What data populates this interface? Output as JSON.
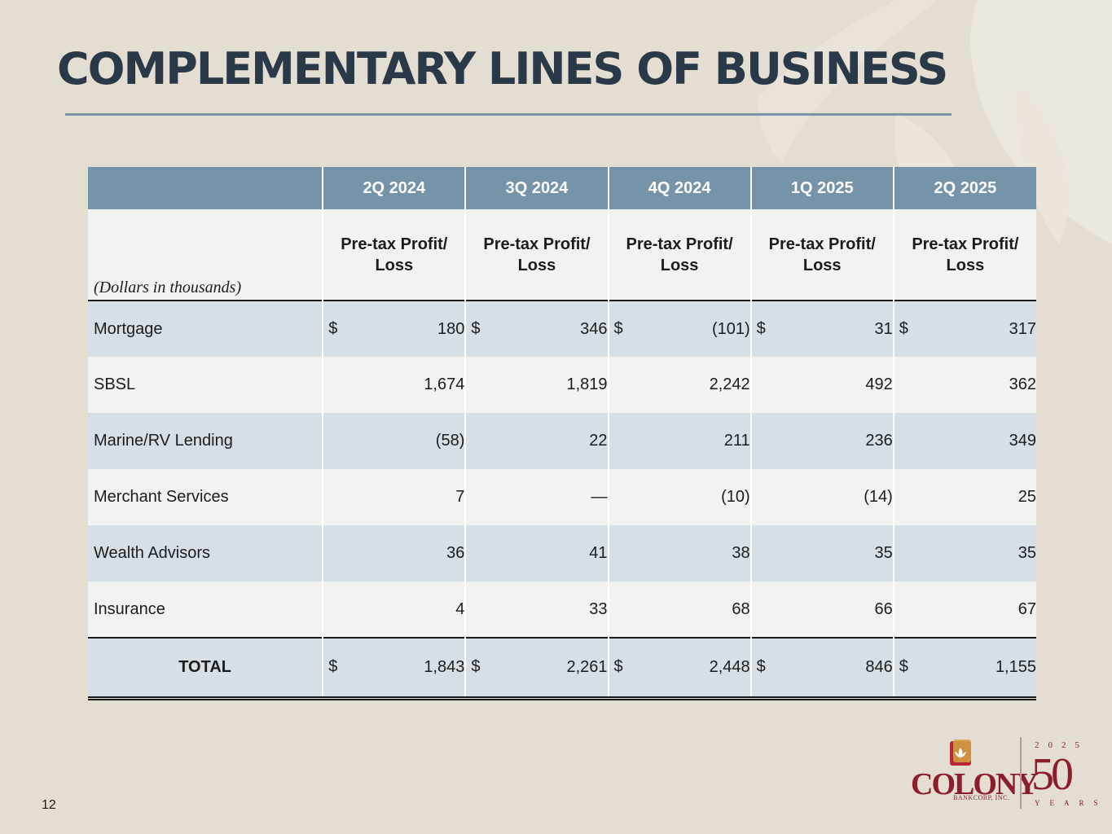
{
  "title": "COMPLEMENTARY LINES OF BUSINESS",
  "colors": {
    "title": "#2a3948",
    "header_bg": "#7593a9",
    "row_shade": "#d7dfe6",
    "row_light": "#f2f2f1",
    "brand": "#8c1d2b",
    "background": "#e4ddd2"
  },
  "table": {
    "units_note": "(Dollars in thousands)",
    "quarters": [
      "2Q 2024",
      "3Q 2024",
      "4Q 2024",
      "1Q 2025",
      "2Q 2025"
    ],
    "metric_line1": "Pre-tax Profit/",
    "metric_line2": "Loss",
    "currency_symbol": "$",
    "rows": [
      {
        "label": "Mortgage",
        "values": [
          "180",
          "346",
          "(101)",
          "31",
          "317"
        ]
      },
      {
        "label": "SBSL",
        "values": [
          "1,674",
          "1,819",
          "2,242",
          "492",
          "362"
        ]
      },
      {
        "label": "Marine/RV Lending",
        "values": [
          "(58)",
          "22",
          "211",
          "236",
          "349"
        ]
      },
      {
        "label": "Merchant Services",
        "values": [
          "7",
          "—",
          "(10)",
          "(14)",
          "25"
        ]
      },
      {
        "label": "Wealth Advisors",
        "values": [
          "36",
          "41",
          "38",
          "35",
          "35"
        ]
      },
      {
        "label": "Insurance",
        "values": [
          "4",
          "33",
          "68",
          "66",
          "67"
        ]
      }
    ],
    "total": {
      "label": "TOTAL",
      "values": [
        "1,843",
        "2,261",
        "2,448",
        "846",
        "1,155"
      ]
    }
  },
  "page_number": "12",
  "logo": {
    "name": "COLONY",
    "subname": "BANKCORP, INC.",
    "anniversary_year": "2025",
    "anniversary_number": "50",
    "anniversary_word": "YEARS"
  }
}
